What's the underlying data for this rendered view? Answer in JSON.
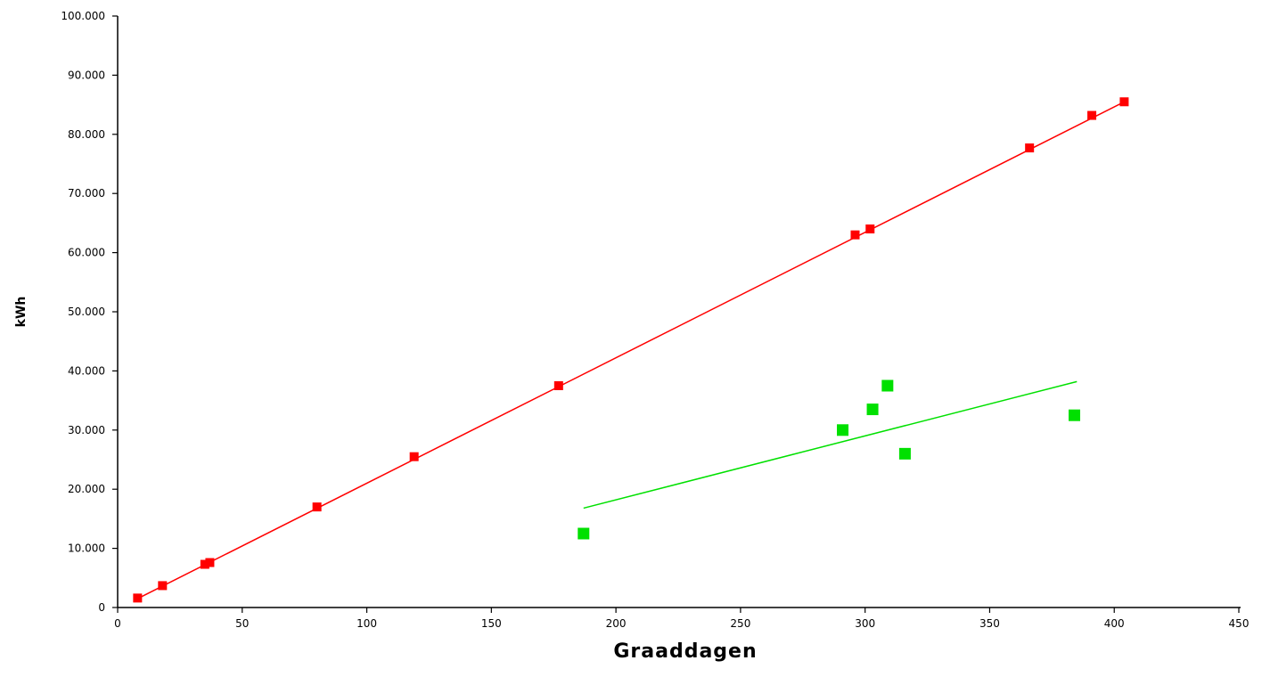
{
  "chart_data": {
    "type": "scatter",
    "title": "",
    "xlabel": "Graaddagen",
    "ylabel": "kWh",
    "xlim": [
      0,
      450
    ],
    "ylim": [
      0,
      100000
    ],
    "xticks": [
      0,
      50,
      100,
      150,
      200,
      250,
      300,
      350,
      400,
      450
    ],
    "yticks": [
      0,
      10000,
      20000,
      30000,
      40000,
      50000,
      60000,
      70000,
      80000,
      90000,
      100000
    ],
    "xtick_labels": [
      "0",
      "50",
      "100",
      "150",
      "200",
      "250",
      "300",
      "350",
      "400",
      "450"
    ],
    "ytick_labels": [
      "0",
      "10.000",
      "20.000",
      "30.000",
      "40.000",
      "50.000",
      "60.000",
      "70.000",
      "80.000",
      "90.000",
      "100.000"
    ],
    "grid": false,
    "legend": "none",
    "series": [
      {
        "color": "#ff0000",
        "marker": "square-small",
        "points": [
          [
            8,
            1600
          ],
          [
            18,
            3700
          ],
          [
            35,
            7300
          ],
          [
            37,
            7600
          ],
          [
            80,
            17000
          ],
          [
            119,
            25500
          ],
          [
            177,
            37500
          ],
          [
            296,
            63000
          ],
          [
            302,
            64000
          ],
          [
            366,
            77700
          ],
          [
            391,
            83200
          ],
          [
            404,
            85500
          ]
        ],
        "trendline": [
          [
            8,
            1500
          ],
          [
            405,
            85700
          ]
        ]
      },
      {
        "color": "#00e000",
        "marker": "square-large",
        "points": [
          [
            187,
            12500
          ],
          [
            291,
            30000
          ],
          [
            303,
            33500
          ],
          [
            309,
            37500
          ],
          [
            316,
            26000
          ],
          [
            384,
            32500
          ]
        ],
        "trendline": [
          [
            187,
            16800
          ],
          [
            385,
            38200
          ]
        ]
      }
    ]
  }
}
